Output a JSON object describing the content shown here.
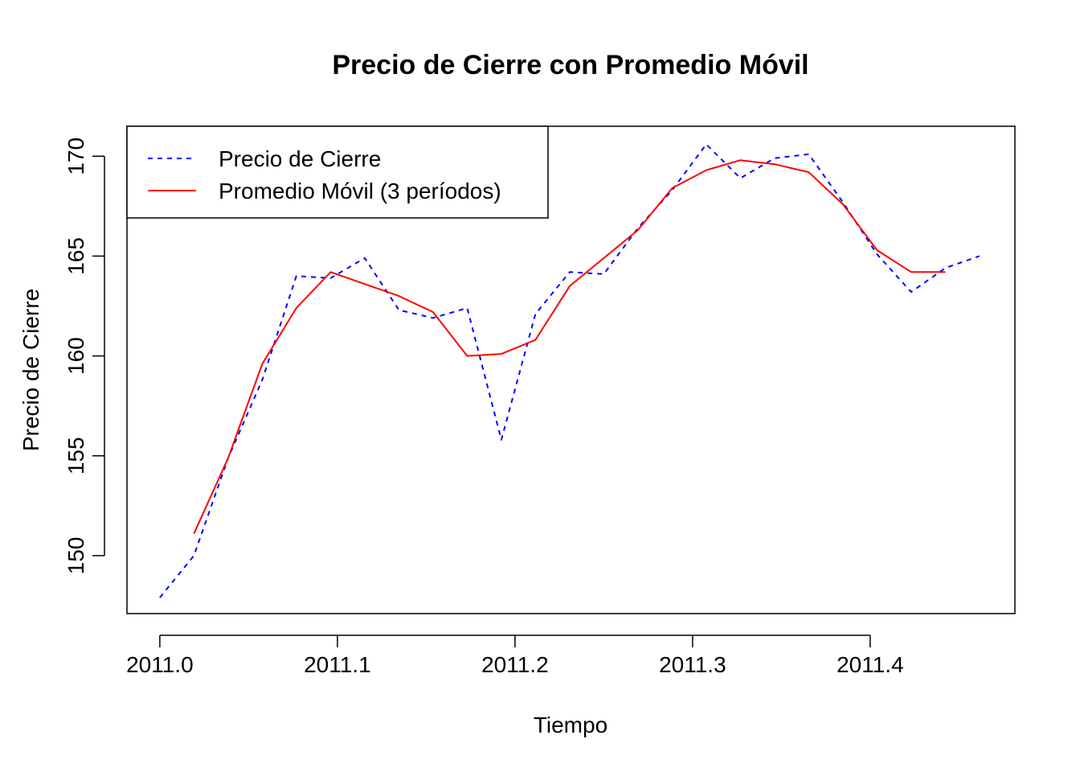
{
  "chart_data": {
    "type": "line",
    "title": "Precio de Cierre con Promedio Móvil",
    "xlabel": "Tiempo",
    "ylabel": "Precio de Cierre",
    "xlim": [
      2010.9815,
      2011.4815
    ],
    "ylim": [
      147.1,
      171.5
    ],
    "x_ticks": [
      2011.0,
      2011.1,
      2011.2,
      2011.3,
      2011.4
    ],
    "x_tick_labels": [
      "2011.0",
      "2011.1",
      "2011.2",
      "2011.3",
      "2011.4"
    ],
    "y_ticks": [
      150,
      155,
      160,
      165,
      170
    ],
    "y_tick_labels": [
      "150",
      "155",
      "160",
      "165",
      "170"
    ],
    "legend_position": "top-left",
    "x": [
      2011.0,
      2011.0192,
      2011.0385,
      2011.0577,
      2011.0769,
      2011.0962,
      2011.1154,
      2011.1346,
      2011.1538,
      2011.1731,
      2011.1923,
      2011.2115,
      2011.2308,
      2011.25,
      2011.2692,
      2011.2885,
      2011.3077,
      2011.3269,
      2011.3462,
      2011.3654,
      2011.3846,
      2011.4038,
      2011.4231,
      2011.4423,
      2011.4615
    ],
    "series": [
      {
        "name": "Precio de Cierre",
        "color": "#0000ff",
        "style": "dashed",
        "values": [
          147.9,
          150.0,
          154.9,
          158.8,
          164.0,
          163.9,
          164.9,
          162.3,
          161.9,
          162.4,
          155.8,
          162.1,
          164.2,
          164.1,
          166.4,
          168.3,
          170.6,
          168.9,
          169.9,
          170.1,
          167.7,
          165.1,
          163.2,
          164.4,
          165.0
        ]
      },
      {
        "name": "Promedio Móvil (3 períodos)",
        "color": "#ff0000",
        "style": "solid",
        "values": [
          null,
          151.1,
          154.9,
          159.6,
          162.4,
          164.2,
          163.6,
          163.0,
          162.2,
          160.0,
          160.1,
          160.8,
          163.5,
          164.9,
          166.3,
          168.4,
          169.3,
          169.8,
          169.6,
          169.2,
          167.6,
          165.3,
          164.2,
          164.2,
          null
        ]
      }
    ]
  }
}
